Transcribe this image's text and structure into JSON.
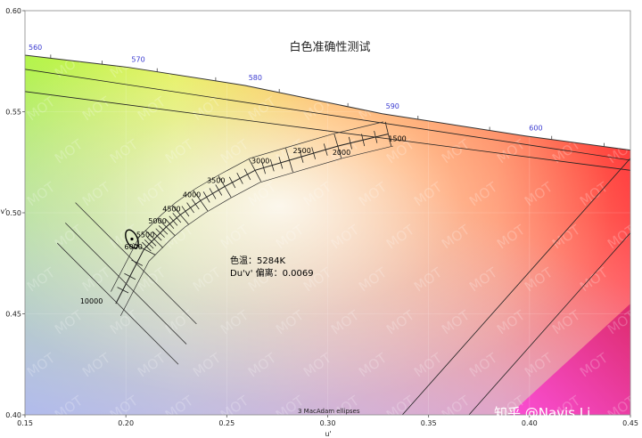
{
  "chart_data": {
    "type": "scatter",
    "title": "白色准确性测试",
    "xlabel": "u'",
    "ylabel": "v'",
    "xlim": [
      0.15,
      0.45
    ],
    "ylim": [
      0.4,
      0.6
    ],
    "x_ticks": [
      "0.15",
      "0.20",
      "0.25",
      "0.30",
      "0.35",
      "0.40",
      "0.45"
    ],
    "y_ticks": [
      "0.40",
      "0.45",
      "0.50",
      "0.55",
      "0.60"
    ],
    "spectral_locus": {
      "wavelength_labels": [
        "560",
        "570",
        "580",
        "590",
        "600"
      ],
      "points": [
        {
          "nm": 560,
          "u": 0.15,
          "v": 0.578
        },
        {
          "nm": 570,
          "u": 0.201,
          "v": 0.572
        },
        {
          "nm": 580,
          "u": 0.259,
          "v": 0.563
        },
        {
          "nm": 590,
          "u": 0.327,
          "v": 0.549
        },
        {
          "nm": 600,
          "u": 0.398,
          "v": 0.538
        },
        {
          "nm": 700,
          "u": 0.45,
          "v": 0.531
        }
      ]
    },
    "planckian_locus": {
      "cct_labels": [
        "1500",
        "2000",
        "2500",
        "3000",
        "3500",
        "4000",
        "4500",
        "5000",
        "5500",
        "6000",
        "10000"
      ],
      "points": [
        {
          "cct": 1500,
          "u": 0.33,
          "v": 0.539
        },
        {
          "cct": 2000,
          "u": 0.305,
          "v": 0.533
        },
        {
          "cct": 2500,
          "u": 0.281,
          "v": 0.526
        },
        {
          "cct": 3000,
          "u": 0.264,
          "v": 0.521
        },
        {
          "cct": 3500,
          "u": 0.249,
          "v": 0.513
        },
        {
          "cct": 4000,
          "u": 0.237,
          "v": 0.506
        },
        {
          "cct": 4500,
          "u": 0.227,
          "v": 0.499
        },
        {
          "cct": 5000,
          "u": 0.22,
          "v": 0.493
        },
        {
          "cct": 5500,
          "u": 0.214,
          "v": 0.487
        },
        {
          "cct": 6000,
          "u": 0.209,
          "v": 0.482
        },
        {
          "cct": 10000,
          "u": 0.195,
          "v": 0.455
        }
      ]
    },
    "measurement": {
      "u": 0.203,
      "v": 0.487,
      "label_cct": "色温：5284K",
      "label_duv": "Du'v' 偏离：0.0069"
    },
    "annotations": [
      "3  MacAdam ellipses"
    ],
    "watermark": "MOT",
    "credit": "知乎 @Navis Li"
  }
}
